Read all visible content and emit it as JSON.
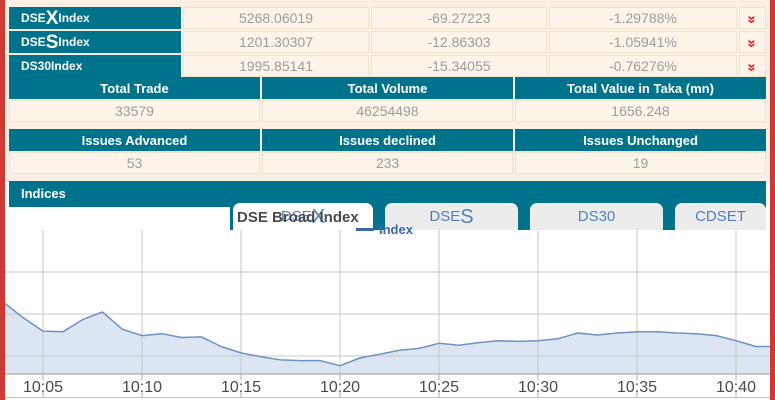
{
  "colors": {
    "teal": "#00738C",
    "edge_red": "#CE3A33",
    "chevron_red": "#E81C24",
    "cream_bg": "#FAEFE2",
    "cell_bg": "#FDF4E9",
    "muted_text": "#9C9C9C",
    "tab_blue": "#4F81BD",
    "legend_blue": "#3A67AD"
  },
  "icons": {
    "double_chevron_down": "»"
  },
  "index_table": {
    "rows": [
      {
        "name_pre": "DSE",
        "name_big": "X",
        "name_suf": " Index",
        "value": "5268.06019",
        "change": "-69.27223",
        "percent": "-1.29788%",
        "trend": "down"
      },
      {
        "name_pre": "DSE",
        "name_big": "S",
        "name_suf": " Index",
        "value": "1201.30307",
        "change": "-12.86303",
        "percent": "-1.05941%",
        "trend": "down"
      },
      {
        "name_pre": "DS30",
        "name_big": "",
        "name_suf": " Index",
        "value": "1995.85141",
        "change": "-15.34055",
        "percent": "-0.76276%",
        "trend": "down"
      }
    ]
  },
  "totals": {
    "headers": [
      "Total Trade",
      "Total Volume",
      "Total Value in Taka (mn)"
    ],
    "values": [
      "33579",
      "46254498",
      "1656.248"
    ]
  },
  "issues": {
    "headers": [
      "Issues Advanced",
      "Issues declined",
      "Issues Unchanged"
    ],
    "values": [
      "53",
      "233",
      "19"
    ]
  },
  "panel": {
    "title": "Indices",
    "chart_title": "DSE Broad Index",
    "legend_label": "Index",
    "tabs": [
      {
        "pre": "DSE",
        "big": "X"
      },
      {
        "pre": "DSE",
        "big": "S"
      },
      {
        "pre": "DS30",
        "big": ""
      },
      {
        "pre": "CDSET",
        "big": ""
      }
    ]
  },
  "chart_data": {
    "type": "area",
    "title": "DSE Broad Index",
    "legend": [
      "Index"
    ],
    "legend_position": "top",
    "grid": true,
    "x_unit": "minutes after 10:00",
    "x_ticks": [
      {
        "minute": 5,
        "label": "10:05"
      },
      {
        "minute": 10,
        "label": "10:10"
      },
      {
        "minute": 15,
        "label": "10:15"
      },
      {
        "minute": 20,
        "label": "10:20"
      },
      {
        "minute": 25,
        "label": "10:25"
      },
      {
        "minute": 30,
        "label": "10:30"
      },
      {
        "minute": 35,
        "label": "10:35"
      },
      {
        "minute": 40,
        "label": "10:40"
      }
    ],
    "ylim": [
      5225,
      5450
    ],
    "line_color": "#6D92C5",
    "fill_color": "#DCE5F2",
    "series": [
      {
        "name": "Index",
        "x": [
          3,
          4,
          5,
          6,
          7,
          8,
          9,
          10,
          11,
          12,
          13,
          14,
          15,
          16,
          17,
          18,
          19,
          20,
          21,
          22,
          23,
          24,
          25,
          26,
          27,
          28,
          29,
          30,
          31,
          32,
          33,
          34,
          35,
          36,
          37,
          38,
          39,
          40,
          41,
          42
        ],
        "values": [
          5337,
          5313,
          5292,
          5291,
          5310,
          5322,
          5295,
          5285,
          5288,
          5282,
          5283,
          5268,
          5258,
          5252,
          5247,
          5246,
          5246,
          5238,
          5250,
          5256,
          5262,
          5265,
          5273,
          5270,
          5274,
          5277,
          5276,
          5277,
          5280,
          5289,
          5286,
          5289,
          5291,
          5291,
          5289,
          5288,
          5285,
          5277,
          5268,
          5268
        ]
      }
    ]
  }
}
